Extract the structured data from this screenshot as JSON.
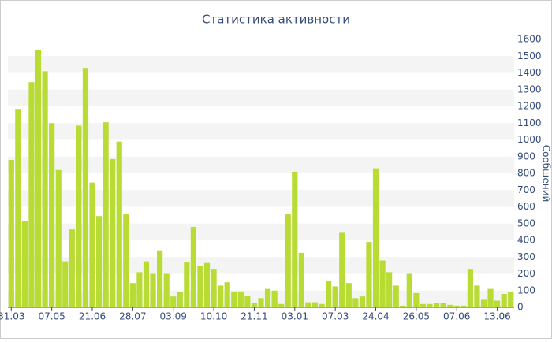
{
  "chart_data": {
    "type": "bar",
    "title": "Статистика активности",
    "y_label": "Сообщений",
    "categories": [
      "31.03",
      null,
      null,
      null,
      null,
      null,
      "07.05",
      null,
      null,
      null,
      null,
      null,
      "21.06",
      null,
      null,
      null,
      null,
      null,
      "28.07",
      null,
      null,
      null,
      null,
      null,
      "03.09",
      null,
      null,
      null,
      null,
      null,
      "10.10",
      null,
      null,
      null,
      null,
      null,
      "21.11",
      null,
      null,
      null,
      null,
      null,
      "03.01",
      null,
      null,
      null,
      null,
      null,
      "07.03",
      null,
      null,
      null,
      null,
      null,
      "24.04",
      null,
      null,
      null,
      null,
      null,
      "26.05",
      null,
      null,
      null,
      null,
      null,
      "07.06",
      null,
      null,
      null,
      null,
      null,
      "13.06",
      null,
      null
    ],
    "values": [
      880,
      1185,
      515,
      1345,
      1535,
      1410,
      1100,
      820,
      275,
      465,
      1085,
      1430,
      745,
      545,
      1105,
      885,
      990,
      555,
      145,
      210,
      275,
      200,
      340,
      200,
      65,
      90,
      270,
      480,
      245,
      265,
      230,
      130,
      150,
      95,
      95,
      70,
      25,
      55,
      110,
      100,
      20,
      555,
      810,
      325,
      30,
      30,
      20,
      160,
      125,
      445,
      145,
      55,
      65,
      390,
      830,
      280,
      210,
      130,
      10,
      200,
      85,
      20,
      20,
      25,
      25,
      15,
      10,
      10,
      230,
      130,
      45,
      110,
      40,
      80,
      90
    ],
    "color": "#b8dc34",
    "ylim": [
      0,
      1600
    ],
    "yticks": [
      0,
      100,
      200,
      300,
      400,
      500,
      600,
      700,
      800,
      900,
      1000,
      1100,
      1200,
      1300,
      1400,
      1500,
      1600
    ],
    "grid": true
  }
}
